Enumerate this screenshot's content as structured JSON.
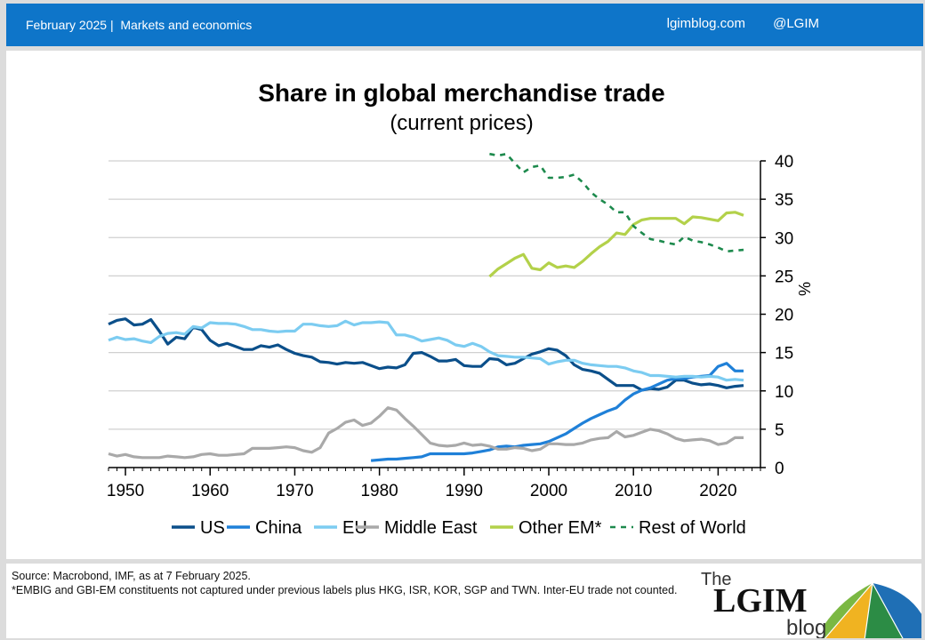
{
  "header": {
    "date": "February 2025",
    "section": "Markets and economics",
    "site": "lgimblog.com",
    "handle": "@LGIM"
  },
  "footer": {
    "source": "Source: Macrobond, IMF, as at 7 February 2025.",
    "note": "*EMBIG and GBI-EM constituents not captured under previous labels plus HKG, ISR, KOR, SGP and TWN. Inter-EU trade not counted."
  },
  "logo": {
    "the": "The",
    "name": "LGIM",
    "blog": "blog"
  },
  "colors": {
    "topbar": "#0e75c9",
    "us": "#0b4f8a",
    "china": "#1f80d8",
    "eu": "#7cccf1",
    "middle_east": "#a9a9a9",
    "other_em": "#b3d14a",
    "rest_of_world": "#1d8a4d"
  },
  "chart_data": {
    "type": "line",
    "title": "Share in global merchandise trade",
    "subtitle": "(current prices)",
    "xlabel": "",
    "ylabel": "%",
    "xlim": [
      1948,
      2025
    ],
    "ylim": [
      0,
      40
    ],
    "xticks": [
      1950,
      1960,
      1970,
      1980,
      1990,
      2000,
      2010,
      2020
    ],
    "yticks": [
      0,
      5,
      10,
      15,
      20,
      25,
      30,
      35,
      40
    ],
    "grid": "horizontal",
    "legend": "bottom",
    "series": [
      {
        "name": "US",
        "color": "#0b4f8a",
        "dash": false,
        "x": [
          1948,
          1949,
          1950,
          1951,
          1952,
          1953,
          1954,
          1955,
          1956,
          1957,
          1958,
          1959,
          1960,
          1961,
          1962,
          1963,
          1964,
          1965,
          1966,
          1967,
          1968,
          1969,
          1970,
          1971,
          1972,
          1973,
          1974,
          1975,
          1976,
          1977,
          1978,
          1979,
          1980,
          1981,
          1982,
          1983,
          1984,
          1985,
          1986,
          1987,
          1988,
          1989,
          1990,
          1991,
          1992,
          1993,
          1994,
          1995,
          1996,
          1997,
          1998,
          1999,
          2000,
          2001,
          2002,
          2003,
          2004,
          2005,
          2006,
          2007,
          2008,
          2009,
          2010,
          2011,
          2012,
          2013,
          2014,
          2015,
          2016,
          2017,
          2018,
          2019,
          2020,
          2021,
          2022,
          2023,
          2024
        ],
        "y": [
          18.7,
          19.2,
          19.4,
          18.6,
          18.7,
          19.3,
          17.8,
          16.1,
          17.0,
          16.8,
          18.3,
          18.0,
          16.6,
          15.9,
          16.2,
          15.8,
          15.4,
          15.4,
          15.9,
          15.7,
          16.0,
          15.4,
          14.9,
          14.6,
          14.4,
          13.8,
          13.7,
          13.5,
          13.7,
          13.6,
          13.7,
          13.3,
          12.9,
          13.1,
          13.0,
          13.4,
          14.9,
          15.0,
          14.5,
          13.9,
          13.9,
          14.1,
          13.3,
          13.2,
          13.2,
          14.2,
          14.1,
          13.4,
          13.6,
          14.2,
          14.8,
          15.1,
          15.5,
          15.3,
          14.6,
          13.4,
          12.8,
          12.6,
          12.3,
          11.5,
          10.7,
          10.7,
          10.7,
          10.1,
          10.3,
          10.2,
          10.5,
          11.4,
          11.4,
          11.0,
          10.8,
          10.9,
          10.7,
          10.4,
          10.6,
          10.7,
          null
        ]
      },
      {
        "name": "China",
        "color": "#1f80d8",
        "dash": false,
        "x": [
          1979,
          1980,
          1981,
          1982,
          1983,
          1984,
          1985,
          1986,
          1987,
          1988,
          1989,
          1990,
          1991,
          1992,
          1993,
          1994,
          1995,
          1996,
          1997,
          1998,
          1999,
          2000,
          2001,
          2002,
          2003,
          2004,
          2005,
          2006,
          2007,
          2008,
          2009,
          2010,
          2011,
          2012,
          2013,
          2014,
          2015,
          2016,
          2017,
          2018,
          2019,
          2020,
          2021,
          2022,
          2023
        ],
        "y": [
          0.9,
          1.0,
          1.1,
          1.1,
          1.2,
          1.3,
          1.4,
          1.8,
          1.8,
          1.8,
          1.8,
          1.8,
          1.9,
          2.1,
          2.3,
          2.7,
          2.8,
          2.7,
          2.9,
          3.0,
          3.1,
          3.4,
          3.9,
          4.4,
          5.1,
          5.8,
          6.4,
          6.9,
          7.4,
          7.8,
          8.8,
          9.6,
          10.1,
          10.4,
          10.9,
          11.4,
          11.6,
          11.6,
          11.8,
          11.9,
          12.0,
          13.2,
          13.6,
          12.6,
          12.6
        ]
      },
      {
        "name": "EU",
        "color": "#7cccf1",
        "dash": false,
        "x": [
          1948,
          1949,
          1950,
          1951,
          1952,
          1953,
          1954,
          1955,
          1956,
          1957,
          1958,
          1959,
          1960,
          1961,
          1962,
          1963,
          1964,
          1965,
          1966,
          1967,
          1968,
          1969,
          1970,
          1971,
          1972,
          1973,
          1974,
          1975,
          1976,
          1977,
          1978,
          1979,
          1980,
          1981,
          1982,
          1983,
          1984,
          1985,
          1986,
          1987,
          1988,
          1989,
          1990,
          1991,
          1992,
          1993,
          1994,
          1995,
          1996,
          1997,
          1998,
          1999,
          2000,
          2001,
          2002,
          2003,
          2004,
          2005,
          2006,
          2007,
          2008,
          2009,
          2010,
          2011,
          2012,
          2013,
          2014,
          2015,
          2016,
          2017,
          2018,
          2019,
          2020,
          2021,
          2022,
          2023
        ],
        "y": [
          16.6,
          17.0,
          16.7,
          16.8,
          16.5,
          16.3,
          17.1,
          17.5,
          17.6,
          17.4,
          18.4,
          18.2,
          18.9,
          18.8,
          18.8,
          18.7,
          18.4,
          18.0,
          18.0,
          17.8,
          17.7,
          17.8,
          17.8,
          18.7,
          18.7,
          18.5,
          18.4,
          18.5,
          19.1,
          18.6,
          18.9,
          18.9,
          19.0,
          18.9,
          17.3,
          17.3,
          17.0,
          16.5,
          16.7,
          16.9,
          16.6,
          16.0,
          15.8,
          16.2,
          15.8,
          15.1,
          14.6,
          14.5,
          14.4,
          14.4,
          14.3,
          14.2,
          13.5,
          13.8,
          14.0,
          14.0,
          13.6,
          13.4,
          13.3,
          13.2,
          13.2,
          13.0,
          12.6,
          12.4,
          12.0,
          12.0,
          11.9,
          11.8,
          11.9,
          11.9,
          11.8,
          11.9,
          11.8,
          11.4,
          11.5,
          11.4
        ]
      },
      {
        "name": "Middle East",
        "color": "#a9a9a9",
        "dash": false,
        "x": [
          1948,
          1949,
          1950,
          1951,
          1952,
          1953,
          1954,
          1955,
          1956,
          1957,
          1958,
          1959,
          1960,
          1961,
          1962,
          1963,
          1964,
          1965,
          1966,
          1967,
          1968,
          1969,
          1970,
          1971,
          1972,
          1973,
          1974,
          1975,
          1976,
          1977,
          1978,
          1979,
          1980,
          1981,
          1982,
          1983,
          1984,
          1985,
          1986,
          1987,
          1988,
          1989,
          1990,
          1991,
          1992,
          1993,
          1994,
          1995,
          1996,
          1997,
          1998,
          1999,
          2000,
          2001,
          2002,
          2003,
          2004,
          2005,
          2006,
          2007,
          2008,
          2009,
          2010,
          2011,
          2012,
          2013,
          2014,
          2015,
          2016,
          2017,
          2018,
          2019,
          2020,
          2021,
          2022,
          2023
        ],
        "y": [
          1.8,
          1.5,
          1.7,
          1.4,
          1.3,
          1.3,
          1.3,
          1.5,
          1.4,
          1.3,
          1.4,
          1.7,
          1.8,
          1.6,
          1.6,
          1.7,
          1.8,
          2.5,
          2.5,
          2.5,
          2.6,
          2.7,
          2.6,
          2.2,
          2.0,
          2.6,
          4.5,
          5.1,
          5.9,
          6.2,
          5.5,
          5.8,
          6.7,
          7.8,
          7.5,
          6.4,
          5.4,
          4.3,
          3.2,
          2.9,
          2.8,
          2.9,
          3.2,
          2.9,
          3.0,
          2.8,
          2.4,
          2.4,
          2.6,
          2.5,
          2.2,
          2.4,
          3.1,
          3.1,
          3.0,
          3.0,
          3.2,
          3.6,
          3.8,
          3.9,
          4.7,
          4.0,
          4.2,
          4.6,
          5.0,
          4.8,
          4.4,
          3.8,
          3.5,
          3.6,
          3.7,
          3.5,
          3.0,
          3.2,
          3.9,
          3.9
        ]
      },
      {
        "name": "Other EM*",
        "color": "#b3d14a",
        "dash": false,
        "x": [
          1993,
          1994,
          1995,
          1996,
          1997,
          1998,
          1999,
          2000,
          2001,
          2002,
          2003,
          2004,
          2005,
          2006,
          2007,
          2008,
          2009,
          2010,
          2011,
          2012,
          2013,
          2014,
          2015,
          2016,
          2017,
          2018,
          2019,
          2020,
          2021,
          2022,
          2023
        ],
        "y": [
          24.9,
          25.9,
          26.6,
          27.3,
          27.8,
          26.0,
          25.8,
          26.7,
          26.1,
          26.3,
          26.1,
          26.9,
          27.9,
          28.8,
          29.5,
          30.6,
          30.4,
          31.7,
          32.3,
          32.5,
          32.5,
          32.5,
          32.5,
          31.8,
          32.7,
          32.6,
          32.4,
          32.2,
          33.2,
          33.3,
          32.9
        ]
      },
      {
        "name": "Rest of World",
        "color": "#1d8a4d",
        "dash": true,
        "x": [
          1993,
          1994,
          1995,
          1996,
          1997,
          1998,
          1999,
          2000,
          2001,
          2002,
          2003,
          2004,
          2005,
          2006,
          2007,
          2008,
          2009,
          2010,
          2011,
          2012,
          2013,
          2014,
          2015,
          2016,
          2017,
          2018,
          2019,
          2020,
          2021,
          2022,
          2023
        ],
        "y": [
          40.9,
          40.7,
          40.9,
          39.7,
          38.5,
          39.2,
          39.4,
          37.8,
          37.8,
          37.9,
          38.2,
          37.2,
          35.9,
          35.0,
          34.3,
          33.3,
          33.3,
          31.5,
          30.6,
          29.8,
          29.6,
          29.3,
          29.1,
          30.1,
          29.6,
          29.4,
          29.1,
          28.7,
          28.2,
          28.3,
          28.4
        ]
      }
    ]
  }
}
